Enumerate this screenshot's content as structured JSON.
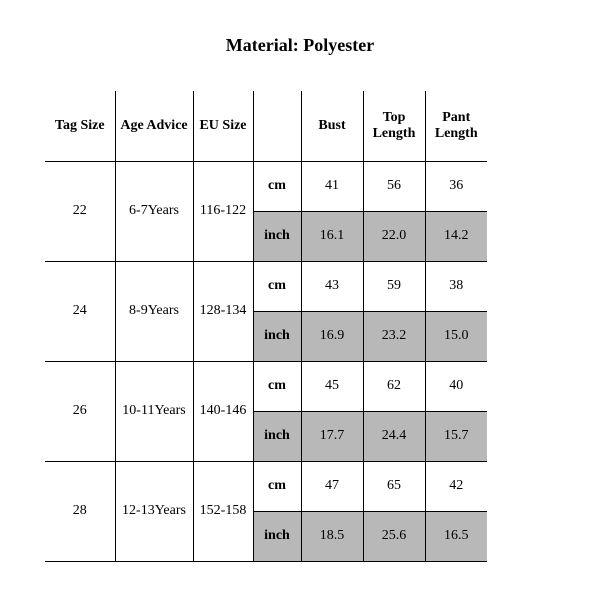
{
  "title": "Material: Polyester",
  "headers": {
    "tag": "Tag Size",
    "age": "Age Advice",
    "eu": "EU Size",
    "unit": "",
    "bust": "Bust",
    "top": "Top Length",
    "pant": "Pant Length"
  },
  "unit_cm": "cm",
  "unit_in": "inch",
  "rows": [
    {
      "tag": "22",
      "age": "6-7Years",
      "eu": "116-122",
      "cm": {
        "bust": "41",
        "top": "56",
        "pant": "36"
      },
      "in": {
        "bust": "16.1",
        "top": "22.0",
        "pant": "14.2"
      }
    },
    {
      "tag": "24",
      "age": "8-9Years",
      "eu": "128-134",
      "cm": {
        "bust": "43",
        "top": "59",
        "pant": "38"
      },
      "in": {
        "bust": "16.9",
        "top": "23.2",
        "pant": "15.0"
      }
    },
    {
      "tag": "26",
      "age": "10-11Years",
      "eu": "140-146",
      "cm": {
        "bust": "45",
        "top": "62",
        "pant": "40"
      },
      "in": {
        "bust": "17.7",
        "top": "24.4",
        "pant": "15.7"
      }
    },
    {
      "tag": "28",
      "age": "12-13Years",
      "eu": "152-158",
      "cm": {
        "bust": "47",
        "top": "65",
        "pant": "42"
      },
      "in": {
        "bust": "18.5",
        "top": "25.6",
        "pant": "16.5"
      }
    }
  ],
  "colors": {
    "shade": "#b8b8b8",
    "bg": "#ffffff",
    "line": "#000000"
  }
}
